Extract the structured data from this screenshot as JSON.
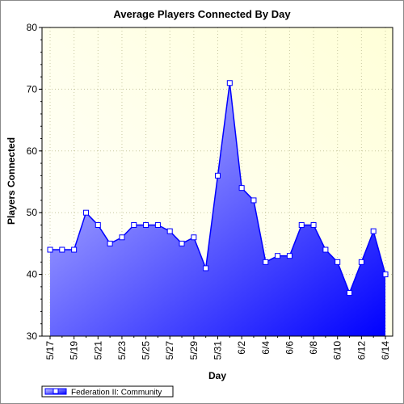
{
  "chart_data": {
    "type": "area",
    "title": "Average Players Connected By Day",
    "xlabel": "Day",
    "ylabel": "Players Connected",
    "ylim": [
      30,
      80
    ],
    "yticks": [
      "30",
      "40",
      "50",
      "60",
      "70",
      "80"
    ],
    "grid": true,
    "legend_position": "bottom-left",
    "categories": [
      "5/17",
      "5/18",
      "5/19",
      "5/20",
      "5/21",
      "5/22",
      "5/23",
      "5/24",
      "5/25",
      "5/26",
      "5/27",
      "5/28",
      "5/29",
      "5/30",
      "5/31",
      "6/1",
      "6/2",
      "6/3",
      "6/4",
      "6/5",
      "6/6",
      "6/7",
      "6/8",
      "6/9",
      "6/10",
      "6/11",
      "6/12",
      "6/13",
      "6/14"
    ],
    "xtick_labels": [
      "5/17",
      "",
      "5/19",
      "",
      "5/21",
      "",
      "5/23",
      "",
      "5/25",
      "",
      "5/27",
      "",
      "5/29",
      "",
      "5/31",
      "",
      "6/2",
      "",
      "6/4",
      "",
      "6/6",
      "",
      "6/8",
      "",
      "6/10",
      "",
      "6/12",
      "",
      "6/14"
    ],
    "series": [
      {
        "name": "Federation II: Community",
        "values": [
          44,
          44,
          44,
          50,
          48,
          45,
          46,
          48,
          48,
          48,
          47,
          45,
          46,
          41,
          56,
          71,
          54,
          52,
          42,
          43,
          43,
          48,
          48,
          44,
          42,
          37,
          42,
          47,
          40
        ]
      }
    ],
    "colors": {
      "line": "#0000ff",
      "fill_light": "#c6c6ff",
      "fill_dark": "#0000ff",
      "plot_bg_light": "#ffffe0",
      "plot_bg_white": "#ffffff",
      "grid": "#c8c8a0"
    }
  }
}
